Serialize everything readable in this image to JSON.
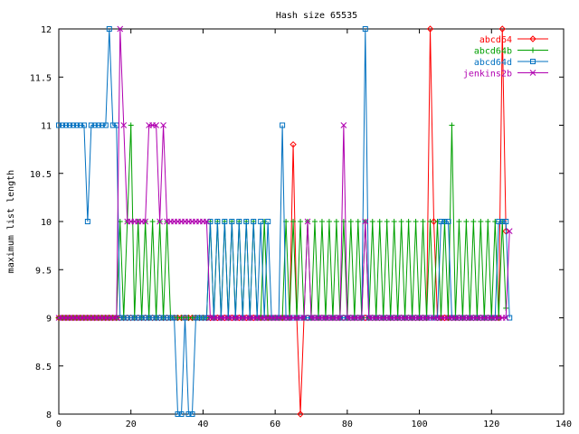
{
  "chart_data": {
    "type": "line",
    "title": "Hash size 65535",
    "xlabel": "",
    "ylabel": "maximum list length",
    "xlim": [
      0,
      140
    ],
    "ylim": [
      8,
      12
    ],
    "xticks": [
      0,
      20,
      40,
      60,
      80,
      100,
      120,
      140
    ],
    "yticks": [
      8,
      8.5,
      9,
      9.5,
      10,
      10.5,
      11,
      11.5,
      12
    ],
    "grid": false,
    "legend": "top-right",
    "series": [
      {
        "name": "abcd64",
        "color": "#ff0000",
        "marker": "diamond",
        "values": [
          9,
          9,
          9,
          9,
          9,
          9,
          9,
          9,
          9,
          9,
          9,
          9,
          9,
          9,
          9,
          9,
          9,
          9,
          9,
          9,
          9,
          9,
          9,
          9,
          9,
          9,
          9,
          9,
          9,
          9,
          9,
          9,
          9,
          9,
          9,
          9,
          9,
          9,
          9,
          9,
          9,
          9,
          9,
          9,
          9,
          9,
          9,
          9,
          9,
          9,
          9,
          9,
          9,
          9,
          9,
          9,
          9,
          9,
          9,
          9,
          9,
          9,
          9,
          9,
          9,
          10.8,
          9,
          8,
          9,
          9,
          9,
          9,
          9,
          9,
          9,
          9,
          9,
          9,
          9,
          9,
          9,
          9,
          9,
          9,
          9,
          9,
          9,
          9,
          9,
          9,
          9,
          9,
          9,
          9,
          9,
          9,
          9,
          9,
          9,
          9,
          9,
          9,
          9,
          12,
          10,
          9,
          9,
          9,
          9,
          9,
          9,
          9,
          9,
          9,
          9,
          9,
          9,
          9,
          9,
          9,
          9,
          9,
          9,
          12,
          9.9
        ]
      },
      {
        "name": "abcd64b",
        "color": "#00a000",
        "marker": "plus",
        "values": [
          9,
          9,
          9,
          9,
          9,
          9,
          9,
          9,
          9,
          9,
          9,
          9,
          9,
          9,
          9,
          9,
          9,
          10,
          9,
          10,
          11,
          9,
          10,
          9,
          10,
          9,
          10,
          9,
          10,
          9,
          10,
          9,
          9,
          9,
          9,
          9,
          9,
          9,
          9,
          9,
          9,
          9,
          10,
          9,
          10,
          9,
          10,
          9,
          10,
          9,
          10,
          9,
          10,
          9,
          10,
          9,
          9,
          10,
          9,
          9,
          9,
          9,
          9,
          10,
          9,
          10,
          9,
          10,
          9,
          10,
          9,
          10,
          9,
          10,
          9,
          10,
          9,
          10,
          9,
          10,
          9,
          10,
          9,
          10,
          9,
          10,
          9,
          10,
          9,
          10,
          9,
          10,
          9,
          10,
          9,
          10,
          9,
          10,
          9,
          10,
          9,
          10,
          9,
          10,
          9,
          10,
          9,
          10,
          9,
          11,
          9,
          10,
          9,
          10,
          9,
          10,
          9,
          10,
          9,
          10,
          9,
          10,
          9,
          10,
          9.1
        ]
      },
      {
        "name": "abcd64d",
        "color": "#0070c0",
        "marker": "square",
        "values": [
          11,
          11,
          11,
          11,
          11,
          11,
          11,
          11,
          10,
          11,
          11,
          11,
          11,
          11,
          12,
          11,
          11,
          9,
          9,
          9,
          9,
          9,
          9,
          9,
          9,
          9,
          9,
          9,
          9,
          9,
          9,
          9,
          9,
          8,
          8,
          9,
          8,
          8,
          9,
          9,
          9,
          9,
          10,
          9,
          10,
          9,
          10,
          9,
          10,
          9,
          10,
          9,
          10,
          9,
          10,
          9,
          10,
          9,
          10,
          9,
          9,
          9,
          11,
          9,
          9,
          9,
          9,
          9,
          9,
          9,
          9,
          9,
          9,
          9,
          9,
          9,
          9,
          9,
          9,
          9,
          9,
          9,
          9,
          9,
          9,
          12,
          9,
          9,
          9,
          9,
          9,
          9,
          9,
          9,
          9,
          9,
          9,
          9,
          9,
          9,
          9,
          9,
          9,
          9,
          9,
          9,
          10,
          10,
          10,
          9,
          9,
          9,
          9,
          9,
          9,
          9,
          9,
          9,
          9,
          9,
          9,
          9,
          10,
          10,
          10,
          9
        ]
      },
      {
        "name": "jenkins2b",
        "color": "#b000b0",
        "marker": "cross",
        "values": [
          9,
          9,
          9,
          9,
          9,
          9,
          9,
          9,
          9,
          9,
          9,
          9,
          9,
          9,
          9,
          9,
          9,
          12,
          11,
          10,
          10,
          10,
          10,
          10,
          10,
          11,
          11,
          11,
          10,
          11,
          10,
          10,
          10,
          10,
          10,
          10,
          10,
          10,
          10,
          10,
          10,
          10,
          9,
          9,
          9,
          9,
          9,
          9,
          9,
          9,
          9,
          9,
          9,
          9,
          9,
          9,
          9,
          9,
          9,
          9,
          9,
          9,
          9,
          9,
          9,
          9,
          9,
          9,
          9,
          10,
          9,
          9,
          9,
          9,
          9,
          9,
          9,
          9,
          9,
          11,
          9,
          9,
          9,
          9,
          9,
          10,
          9,
          9,
          9,
          9,
          9,
          9,
          9,
          9,
          9,
          9,
          9,
          9,
          9,
          9,
          9,
          9,
          9,
          9,
          9,
          9,
          9,
          9,
          9,
          9,
          9,
          9,
          9,
          9,
          9,
          9,
          9,
          9,
          9,
          9,
          9,
          9,
          9,
          9,
          9,
          9.9
        ]
      }
    ]
  }
}
